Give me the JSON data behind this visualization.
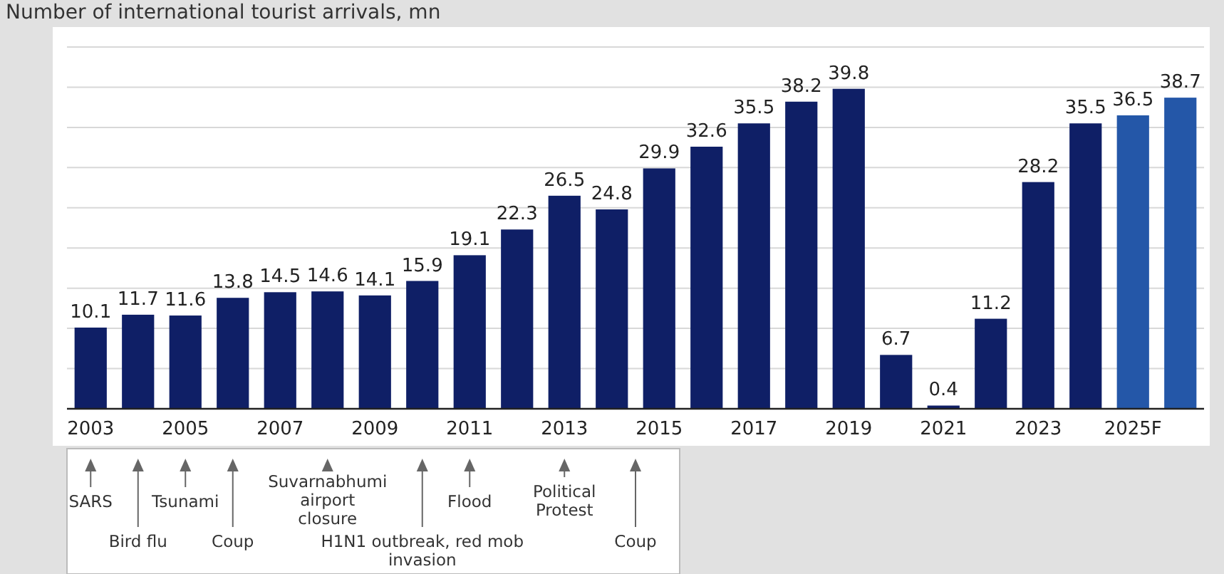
{
  "chart_data": {
    "type": "bar",
    "title": "Number of international tourist arrivals, mn",
    "x": [
      2003,
      2004,
      2005,
      2006,
      2007,
      2008,
      2009,
      2010,
      2011,
      2012,
      2013,
      2014,
      2015,
      2016,
      2017,
      2018,
      2019,
      2020,
      2021,
      2022,
      2023,
      2024,
      2025,
      2026
    ],
    "values": [
      10.1,
      11.7,
      11.6,
      13.8,
      14.5,
      14.6,
      14.1,
      15.9,
      19.1,
      22.3,
      26.5,
      24.8,
      29.9,
      32.6,
      35.5,
      38.2,
      39.8,
      6.7,
      0.4,
      11.2,
      28.2,
      35.5,
      36.5,
      38.7
    ],
    "colors": [
      "#0f1f66",
      "#0f1f66",
      "#0f1f66",
      "#0f1f66",
      "#0f1f66",
      "#0f1f66",
      "#0f1f66",
      "#0f1f66",
      "#0f1f66",
      "#0f1f66",
      "#0f1f66",
      "#0f1f66",
      "#0f1f66",
      "#0f1f66",
      "#0f1f66",
      "#0f1f66",
      "#0f1f66",
      "#0f1f66",
      "#0f1f66",
      "#0f1f66",
      "#0f1f66",
      "#0f1f66",
      "#2457a8",
      "#2457a8"
    ],
    "data_labels": true,
    "xlim": [
      2002.5,
      2026.5
    ],
    "xticks": [
      2003,
      2005,
      2007,
      2009,
      2011,
      2013,
      2015,
      2017,
      2019,
      2021,
      2023,
      {
        "value": 2025,
        "label": "2025F"
      }
    ],
    "ylim": [
      0,
      45
    ],
    "yticks": [
      {
        "value": 0,
        "label": null
      },
      {
        "value": 5,
        "label": null
      },
      {
        "value": 10,
        "label": null
      },
      {
        "value": 15,
        "label": null
      },
      {
        "value": 20,
        "label": null
      },
      {
        "value": 25,
        "label": null
      },
      {
        "value": 30,
        "label": null
      },
      {
        "value": 35,
        "label": null
      },
      {
        "value": 40,
        "label": null
      },
      {
        "value": 45,
        "label": null
      }
    ],
    "tick_labels": "x",
    "grid": "y",
    "annotations": [
      "SARS",
      "Bird flu",
      "Tsunami",
      "Coup",
      "Suvarnabhumi airport closure",
      "H1N1 outbreak, red mob invasion",
      "Flood",
      "Political Protest",
      "Coup"
    ]
  }
}
